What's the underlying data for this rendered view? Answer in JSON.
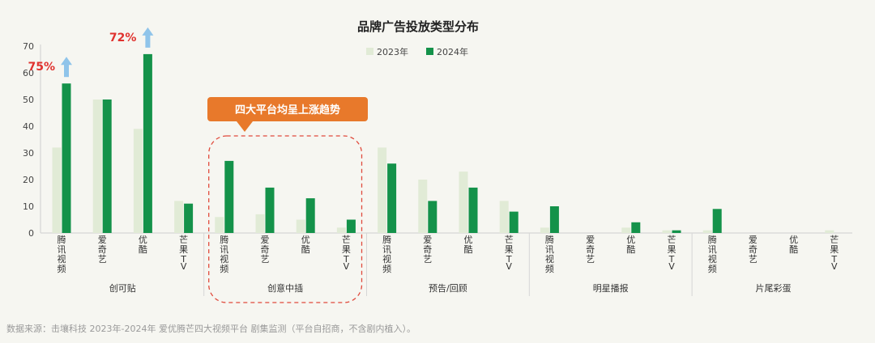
{
  "chart_data": {
    "type": "bar",
    "title": "品牌广告投放类型分布",
    "ylim": [
      0,
      70
    ],
    "yticks": [
      0,
      10,
      20,
      30,
      40,
      50,
      60,
      70
    ],
    "groups": [
      {
        "label": "创可贴",
        "categories": [
          "腾讯视频",
          "爱奇艺",
          "优酷",
          "芒果TV"
        ]
      },
      {
        "label": "创意中插",
        "categories": [
          "腾讯视频",
          "爱奇艺",
          "优酷",
          "芒果TV"
        ]
      },
      {
        "label": "预告/回顾",
        "categories": [
          "腾讯视频",
          "爱奇艺",
          "优酷",
          "芒果TV"
        ]
      },
      {
        "label": "明星播报",
        "categories": [
          "腾讯视频",
          "爱奇艺",
          "优酷",
          "芒果TV"
        ]
      },
      {
        "label": "片尾彩蛋",
        "categories": [
          "腾讯视频",
          "爱奇艺",
          "优酷",
          "芒果TV"
        ]
      }
    ],
    "series": [
      {
        "name": "2023年",
        "color": "#e1ebd6",
        "values": [
          32,
          50,
          39,
          12,
          6,
          7,
          5,
          2,
          32,
          20,
          23,
          12,
          2,
          0,
          2,
          1,
          1,
          0,
          0,
          1
        ]
      },
      {
        "name": "2024年",
        "color": "#14924a",
        "values": [
          56,
          50,
          67,
          11,
          27,
          17,
          13,
          5,
          26,
          12,
          17,
          8,
          10,
          0,
          4,
          1,
          9,
          0,
          0,
          0
        ]
      }
    ],
    "legend_position": "top-center",
    "annotations": [
      {
        "text": "75%",
        "series": 1,
        "index": 0,
        "arrow": "up"
      },
      {
        "text": "72%",
        "series": 1,
        "index": 2,
        "arrow": "up"
      }
    ],
    "callout": {
      "text": "四大平台均呈上涨趋势",
      "color": "#e8792b",
      "highlight_group": 1
    }
  },
  "source_note": "数据来源：击壤科技 2023年-2024年 爱优腾芒四大视频平台 剧集监测（平台自招商，不含剧内植入）。"
}
